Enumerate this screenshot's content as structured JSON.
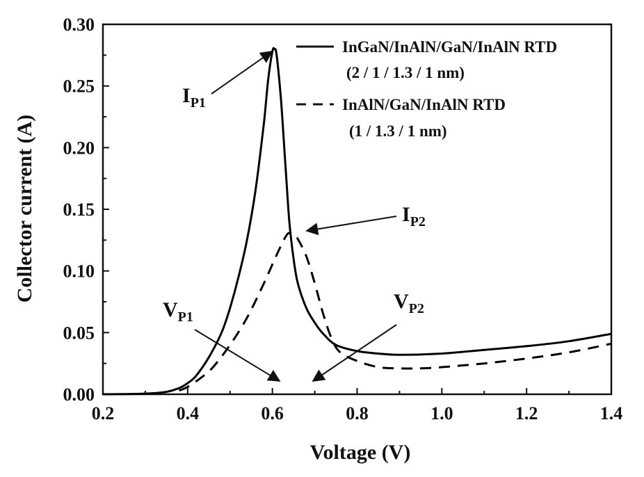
{
  "chart_data": {
    "type": "line",
    "xlabel": "Voltage (V)",
    "ylabel": "Collector current (A)",
    "xlim": [
      0.2,
      1.4
    ],
    "ylim": [
      0.0,
      0.3
    ],
    "xticks": [
      "0.2",
      "0.4",
      "0.6",
      "0.8",
      "1.0",
      "1.2",
      "1.4"
    ],
    "yticks": [
      "0.00",
      "0.05",
      "0.10",
      "0.15",
      "0.20",
      "0.25",
      "0.30"
    ],
    "grid": false,
    "legend_position": "top-right",
    "series": [
      {
        "name": "InGaN/InAlN/GaN/InAlN RTD",
        "name_line2": "(2 / 1 / 1.3 / 1 nm)",
        "style": "solid",
        "color": "#000000",
        "x": [
          0.2,
          0.3,
          0.35,
          0.38,
          0.4,
          0.42,
          0.45,
          0.48,
          0.5,
          0.52,
          0.54,
          0.56,
          0.58,
          0.59,
          0.6,
          0.605,
          0.61,
          0.62,
          0.63,
          0.64,
          0.65,
          0.66,
          0.68,
          0.7,
          0.72,
          0.75,
          0.8,
          0.85,
          0.9,
          1.0,
          1.1,
          1.2,
          1.3,
          1.4
        ],
        "y": [
          0.0,
          0.0005,
          0.002,
          0.005,
          0.009,
          0.015,
          0.03,
          0.05,
          0.07,
          0.095,
          0.125,
          0.165,
          0.22,
          0.255,
          0.278,
          0.28,
          0.275,
          0.24,
          0.19,
          0.14,
          0.11,
          0.09,
          0.07,
          0.058,
          0.049,
          0.04,
          0.035,
          0.033,
          0.032,
          0.033,
          0.036,
          0.039,
          0.043,
          0.049
        ]
      },
      {
        "name": "InAlN/GaN/InAlN RTD",
        "name_line2": "(1 / 1.3 / 1 nm)",
        "style": "dashed",
        "color": "#000000",
        "x": [
          0.38,
          0.4,
          0.43,
          0.46,
          0.5,
          0.54,
          0.58,
          0.61,
          0.63,
          0.64,
          0.65,
          0.66,
          0.68,
          0.7,
          0.72,
          0.74,
          0.76,
          0.8,
          0.85,
          0.9,
          0.95,
          1.0,
          1.1,
          1.2,
          1.3,
          1.4
        ],
        "y": [
          0.003,
          0.006,
          0.013,
          0.022,
          0.04,
          0.062,
          0.09,
          0.113,
          0.127,
          0.131,
          0.13,
          0.126,
          0.112,
          0.09,
          0.065,
          0.045,
          0.034,
          0.027,
          0.022,
          0.021,
          0.021,
          0.022,
          0.025,
          0.029,
          0.034,
          0.041
        ]
      }
    ],
    "annotations": [
      {
        "main": "I",
        "sub": "P1"
      },
      {
        "main": "I",
        "sub": "P2"
      },
      {
        "main": "V",
        "sub": "P1"
      },
      {
        "main": "V",
        "sub": "P2"
      }
    ]
  }
}
